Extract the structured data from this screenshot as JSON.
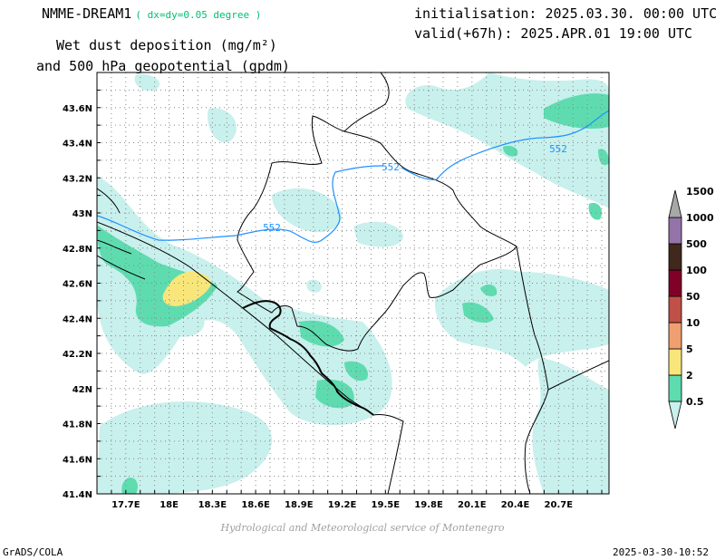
{
  "header": {
    "model": "NMME-DREAM1",
    "resolution": "( dx=dy=0.05 degree )",
    "title_line1": "Wet dust deposition (mg/m²)",
    "title_line2": "and 500 hPa geopotential (gpdm)",
    "initialisation": "initialisation: 2025.03.30. 00:00 UTC",
    "valid": "valid(+67h): 2025.APR.01 19:00 UTC"
  },
  "axes": {
    "lon_labels": [
      "17.7E",
      "18E",
      "18.3E",
      "18.6E",
      "18.9E",
      "19.2E",
      "19.5E",
      "19.8E",
      "20.1E",
      "20.4E",
      "20.7E"
    ],
    "lat_labels": [
      "43.6N",
      "43.4N",
      "43.2N",
      "43N",
      "42.8N",
      "42.6N",
      "42.4N",
      "42.2N",
      "42N",
      "41.8N",
      "41.6N",
      "41.4N"
    ],
    "lon_range": [
      17.5,
      21.05
    ],
    "lat_range": [
      41.4,
      43.8
    ]
  },
  "contours": {
    "label_value": "552",
    "color": "#1e90ff"
  },
  "colorbar": {
    "levels": [
      "0.5",
      "2",
      "5",
      "10",
      "50",
      "100",
      "500",
      "1000",
      "1500"
    ],
    "colors": [
      "#c8f0ec",
      "#5edcb0",
      "#f8e67a",
      "#f0a070",
      "#c05048",
      "#800028",
      "#40281c",
      "#9474a8",
      "#a8a8a8"
    ]
  },
  "credit": "Hydrological and Meteorological service of Montenegro",
  "footer": {
    "left": "GrADS/COLA",
    "right": "2025-03-30-10:52"
  }
}
